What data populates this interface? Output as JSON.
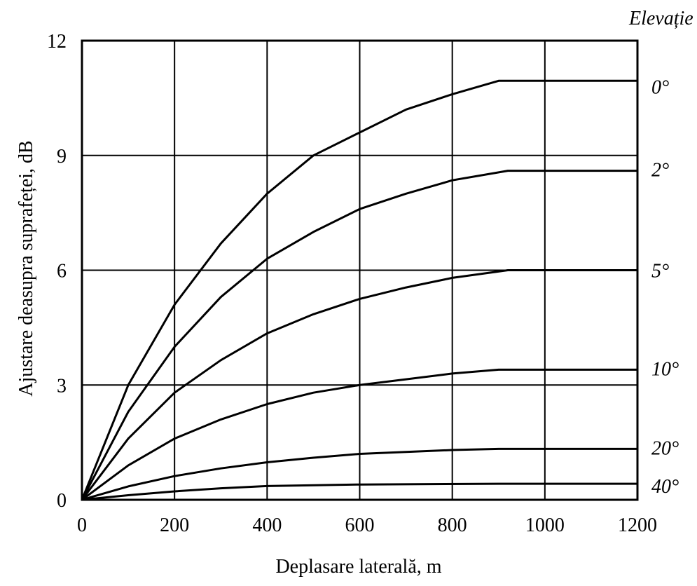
{
  "chart_data": {
    "type": "line",
    "xlabel": "Deplasare laterală, m",
    "ylabel": "Ajustare deasupra suprafeței, dB",
    "legend_title": "Elevație",
    "legend_placement": "right",
    "grid": true,
    "xlim": [
      0,
      1200
    ],
    "ylim": [
      0,
      12
    ],
    "x_ticks": [
      "0",
      "200",
      "400",
      "600",
      "800",
      "1000",
      "1200"
    ],
    "y_ticks": [
      "0",
      "3",
      "6",
      "9",
      "12"
    ],
    "x_tick_values": [
      0,
      200,
      400,
      600,
      800,
      1000,
      1200
    ],
    "y_tick_values": [
      0,
      3,
      6,
      9,
      12
    ],
    "series": [
      {
        "name": "0°",
        "x": [
          0,
          100,
          200,
          300,
          400,
          500,
          600,
          700,
          800,
          900,
          1200
        ],
        "y": [
          0,
          3.0,
          5.1,
          6.7,
          8.0,
          9.0,
          9.6,
          10.2,
          10.6,
          10.95,
          10.95
        ]
      },
      {
        "name": "2°",
        "x": [
          0,
          100,
          200,
          300,
          400,
          500,
          600,
          700,
          800,
          920,
          1200
        ],
        "y": [
          0,
          2.3,
          4.0,
          5.3,
          6.3,
          7.0,
          7.6,
          8.0,
          8.35,
          8.6,
          8.6
        ]
      },
      {
        "name": "5°",
        "x": [
          0,
          100,
          200,
          300,
          400,
          500,
          600,
          700,
          800,
          920,
          1200
        ],
        "y": [
          0,
          1.6,
          2.8,
          3.65,
          4.35,
          4.85,
          5.25,
          5.55,
          5.8,
          6.0,
          6.0
        ]
      },
      {
        "name": "10°",
        "x": [
          0,
          100,
          200,
          300,
          400,
          500,
          600,
          700,
          800,
          900,
          1200
        ],
        "y": [
          0,
          0.9,
          1.6,
          2.1,
          2.5,
          2.8,
          3.0,
          3.15,
          3.3,
          3.4,
          3.4
        ]
      },
      {
        "name": "20°",
        "x": [
          0,
          100,
          200,
          300,
          400,
          500,
          600,
          700,
          800,
          900,
          1200
        ],
        "y": [
          0,
          0.35,
          0.62,
          0.82,
          0.98,
          1.1,
          1.2,
          1.25,
          1.3,
          1.33,
          1.33
        ]
      },
      {
        "name": "40°",
        "x": [
          0,
          100,
          200,
          300,
          400,
          600,
          900,
          1200
        ],
        "y": [
          0,
          0.12,
          0.22,
          0.3,
          0.36,
          0.4,
          0.42,
          0.42
        ]
      }
    ]
  }
}
